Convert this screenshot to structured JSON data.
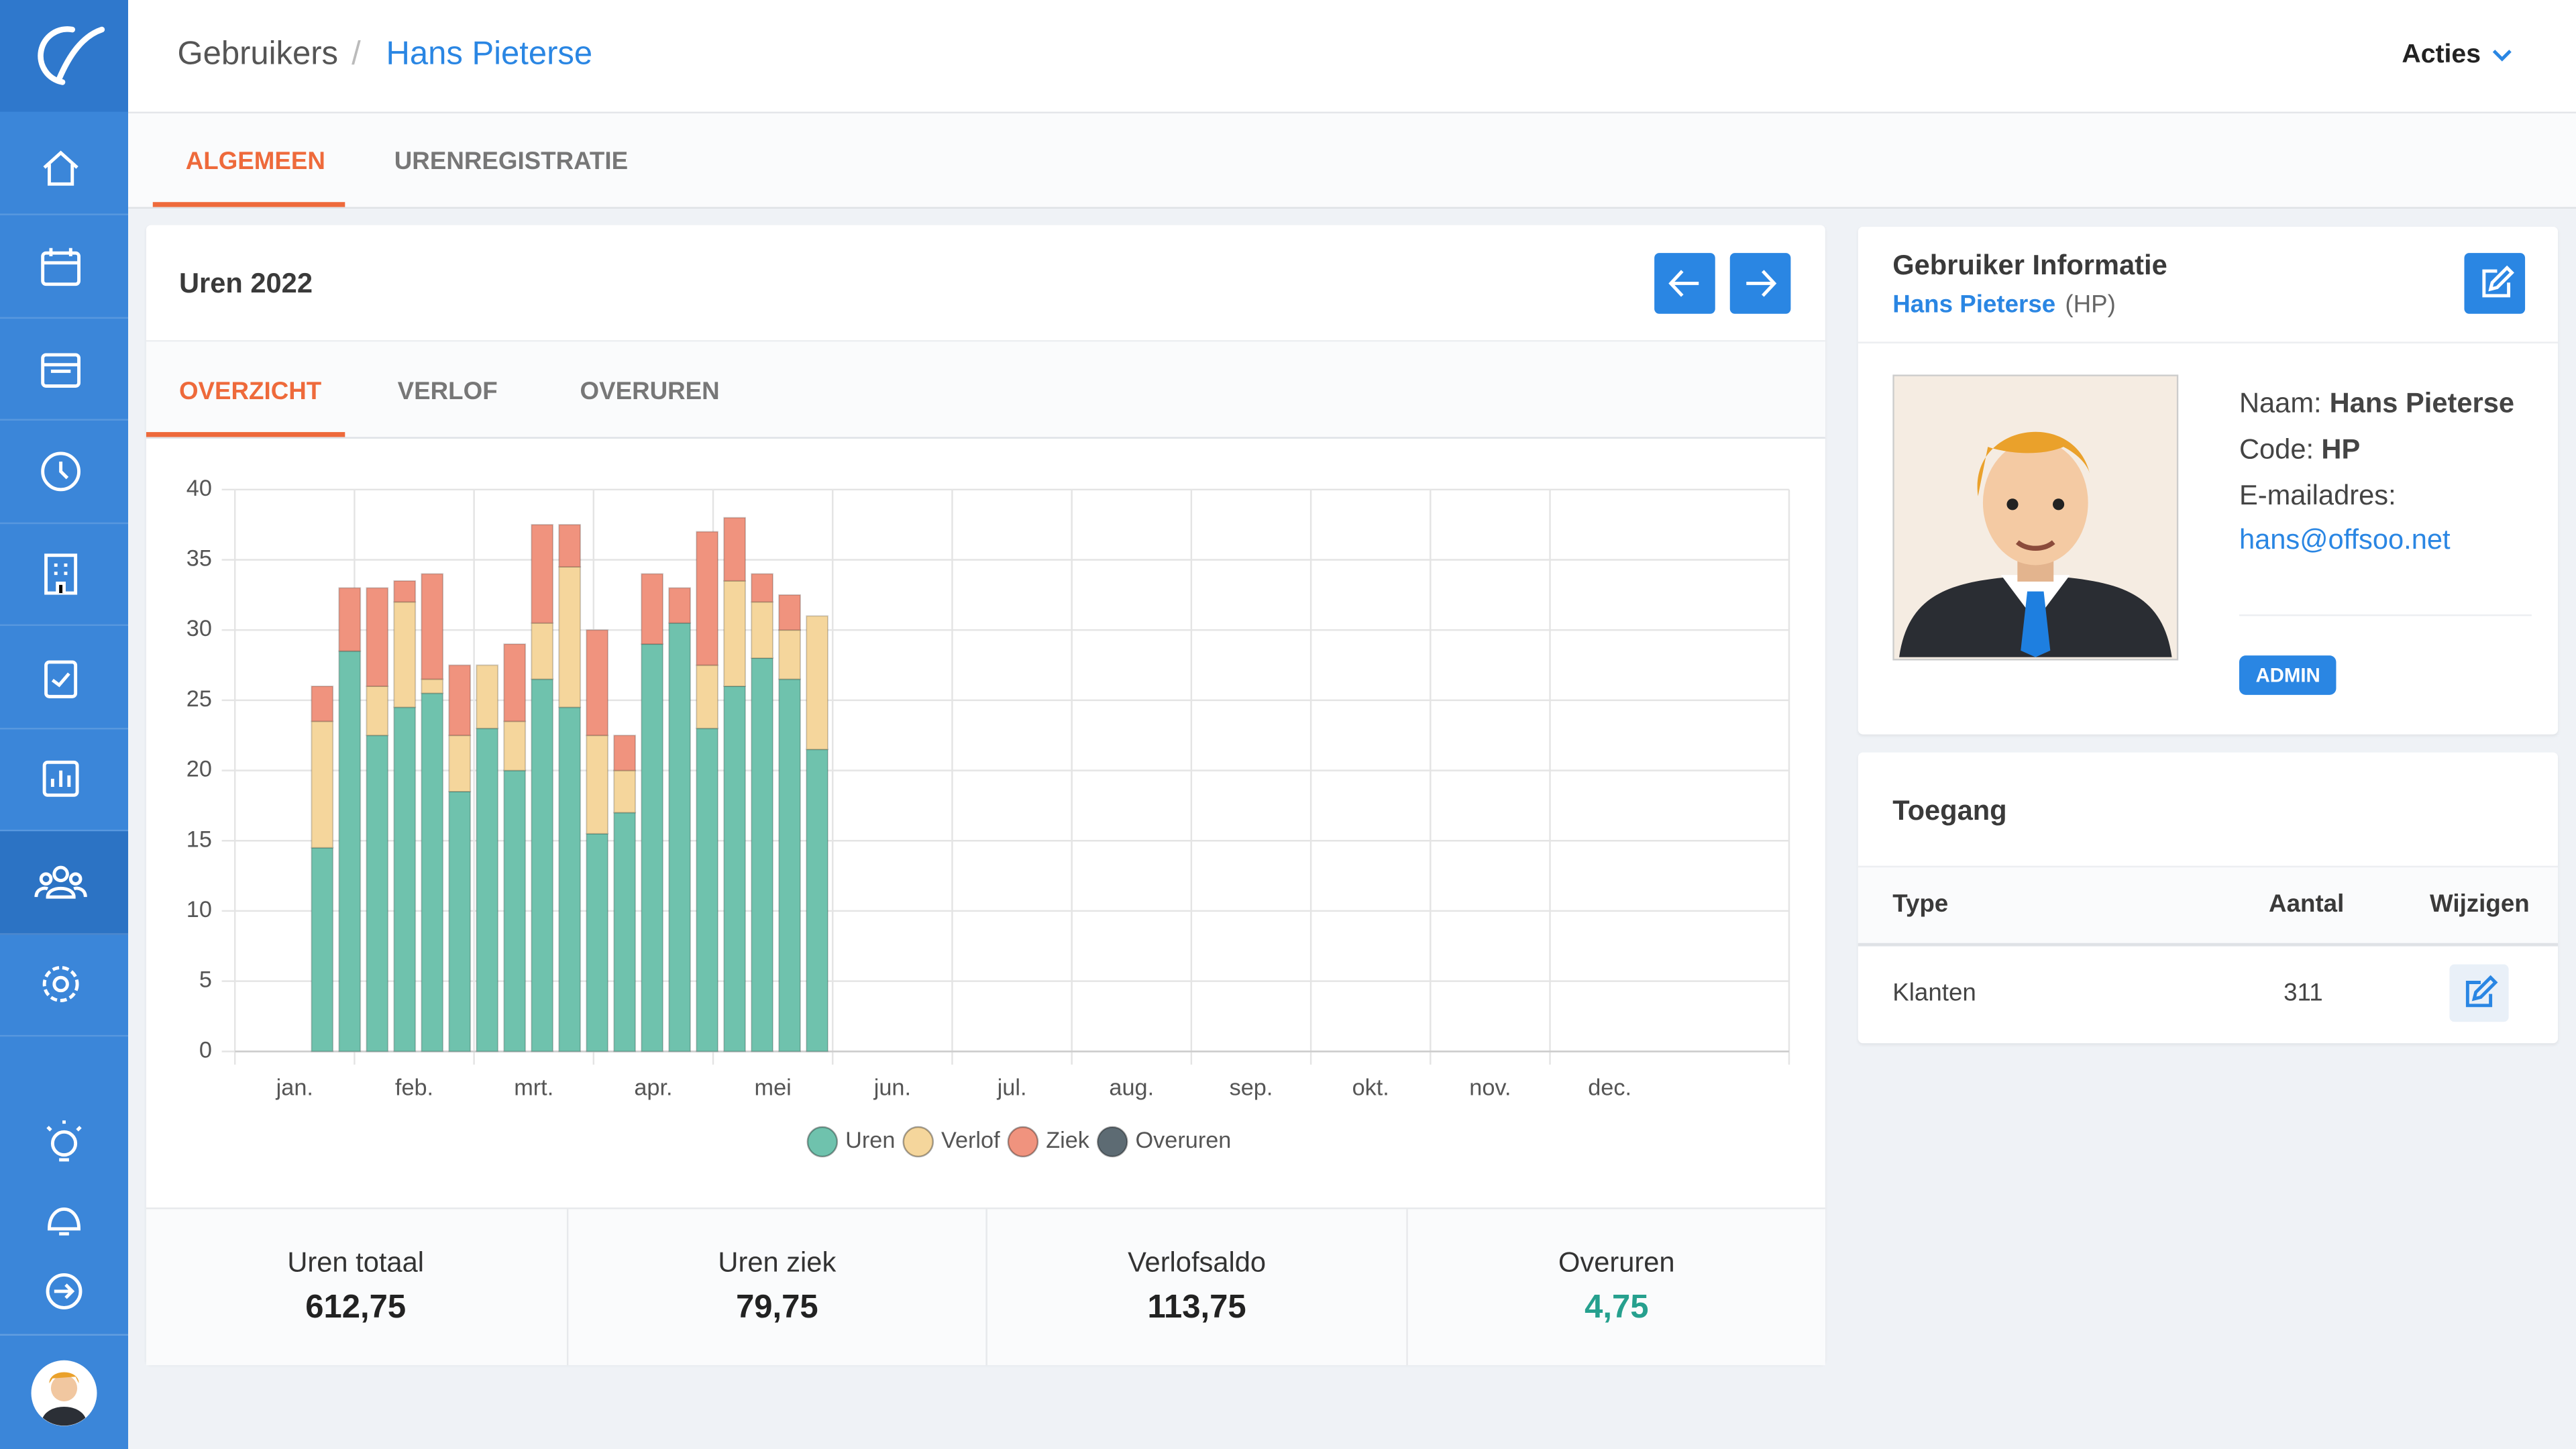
{
  "header": {
    "breadcrumb": "Gebruikers",
    "separator": "/",
    "current": "Hans Pieterse",
    "actions": "Acties"
  },
  "tabs": [
    "ALGEMEEN",
    "URENREGISTRATIE"
  ],
  "hours_card": {
    "title": "Uren 2022",
    "tabs": [
      "OVERZICHT",
      "VERLOF",
      "OVERUREN"
    ],
    "stats": [
      {
        "label": "Uren totaal",
        "value": "612,75"
      },
      {
        "label": "Uren ziek",
        "value": "79,75"
      },
      {
        "label": "Verlofsaldo",
        "value": "113,75"
      },
      {
        "label": "Overuren",
        "value": "4,75"
      }
    ]
  },
  "chart_data": {
    "type": "bar",
    "stacked": true,
    "x": [
      0.73,
      0.96,
      1.19,
      1.42,
      1.65,
      1.88,
      2.11,
      2.34,
      2.57,
      2.8,
      3.03,
      3.26,
      3.49,
      3.72,
      3.95,
      4.18,
      4.41,
      4.64,
      4.87
    ],
    "xlim": [
      0,
      13
    ],
    "xticks": [
      {
        "value": 0,
        "label": "jan."
      },
      {
        "value": 1,
        "label": "feb."
      },
      {
        "value": 2,
        "label": "mrt."
      },
      {
        "value": 3,
        "label": "apr."
      },
      {
        "value": 4,
        "label": "mei"
      },
      {
        "value": 5,
        "label": "jun."
      },
      {
        "value": 6,
        "label": "jul."
      },
      {
        "value": 7,
        "label": "aug."
      },
      {
        "value": 8,
        "label": "sep."
      },
      {
        "value": 9,
        "label": "okt."
      },
      {
        "value": 10,
        "label": "nov."
      },
      {
        "value": 11,
        "label": "dec."
      }
    ],
    "ylim": [
      0,
      40
    ],
    "yticks": [
      0,
      5,
      10,
      15,
      20,
      25,
      30,
      35,
      40
    ],
    "grid": true,
    "legend": "bottom",
    "series": [
      {
        "name": "Uren",
        "color": "#6fc2ad",
        "values": [
          14.5,
          28.5,
          22.5,
          24.5,
          25.5,
          18.5,
          23,
          20,
          26.5,
          24.5,
          15.5,
          17,
          29,
          30.5,
          23,
          26,
          28,
          26.5,
          21.5
        ]
      },
      {
        "name": "Verlof",
        "color": "#f5d69c",
        "values": [
          9,
          0,
          3.5,
          7.5,
          1,
          4,
          4.5,
          3.5,
          4,
          10,
          7,
          3,
          0,
          0,
          4.5,
          7.5,
          4,
          3.5,
          9.5
        ]
      },
      {
        "name": "Ziek",
        "color": "#f0937e",
        "values": [
          2.5,
          4.5,
          7,
          1.5,
          7.5,
          5,
          0,
          5.5,
          7,
          3,
          7.5,
          2.5,
          5,
          2.5,
          9.5,
          4.5,
          2,
          2.5,
          0
        ]
      },
      {
        "name": "Overuren",
        "color": "#5d6b73",
        "values": [
          0,
          0,
          0,
          0,
          0,
          0,
          0,
          0,
          0,
          0,
          0,
          0,
          0,
          0,
          0,
          0,
          0,
          0,
          0
        ]
      }
    ]
  },
  "user_card": {
    "title": "Gebruiker Informatie",
    "name": "Hans Pieterse",
    "code_suffix": "(HP)",
    "fields": [
      {
        "label": "Naam:",
        "value": "Hans Pieterse"
      },
      {
        "label": "Code:",
        "value": "HP"
      },
      {
        "label": "E-mailadres:",
        "value": "hans@offsoo.net"
      }
    ],
    "badge": "ADMIN"
  },
  "access_card": {
    "title": "Toegang",
    "columns": [
      "Type",
      "Aantal",
      "Wijzigen"
    ],
    "rows": [
      [
        "Klanten",
        "311"
      ]
    ]
  }
}
